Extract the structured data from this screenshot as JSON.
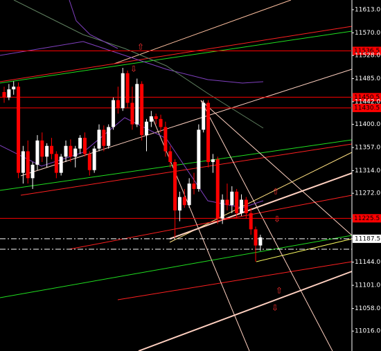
{
  "chart_data": {
    "type": "candlestick",
    "up_color": "#ffffff",
    "down_color": "#ff0000",
    "level_color": "#ff0000",
    "ylim": [
      10979,
      11631
    ],
    "yticks": [
      {
        "value": 11613,
        "label": "11613.0"
      },
      {
        "value": 11570,
        "label": "11570.0"
      },
      {
        "value": 11528,
        "label": "11528.0"
      },
      {
        "value": 11485,
        "label": "11485.0"
      },
      {
        "value": 11442,
        "label": "11442.0"
      },
      {
        "value": 11400,
        "label": "11400.0"
      },
      {
        "value": 11357,
        "label": "11357.0"
      },
      {
        "value": 11314,
        "label": "11314.0"
      },
      {
        "value": 11272,
        "label": "11272.0"
      },
      11187.5,
      {
        "value": 11144,
        "label": "11144.0"
      },
      {
        "value": 11101,
        "label": "11101.0"
      },
      {
        "value": 11058,
        "label": "11058.0"
      },
      {
        "value": 11016,
        "label": "11016.0"
      }
    ],
    "levels": [
      {
        "value": 11536.5,
        "label": "11536.5"
      },
      {
        "value": 11450.5,
        "label": "11450.5"
      },
      {
        "value": 11430.5,
        "label": "11430.5"
      },
      {
        "value": 11225.5,
        "label": "11225.5"
      }
    ],
    "dashed_levels": [
      11187.5,
      11168
    ],
    "ohlc": [
      [
        11460,
        11470,
        11440,
        11450
      ],
      [
        11450,
        11475,
        11445,
        11465
      ],
      [
        11465,
        11480,
        11455,
        11470
      ],
      [
        11470,
        11478,
        11300,
        11310
      ],
      [
        11310,
        11360,
        11290,
        11350
      ],
      [
        11350,
        11370,
        11290,
        11300
      ],
      [
        11300,
        11330,
        11280,
        11325
      ],
      [
        11325,
        11380,
        11315,
        11370
      ],
      [
        11370,
        11385,
        11330,
        11340
      ],
      [
        11340,
        11365,
        11320,
        11360
      ],
      [
        11360,
        11375,
        11335,
        11345
      ],
      [
        11345,
        11350,
        11300,
        11310
      ],
      [
        11310,
        11345,
        11305,
        11340
      ],
      [
        11340,
        11370,
        11330,
        11360
      ],
      [
        11360,
        11372,
        11330,
        11340
      ],
      [
        11340,
        11360,
        11320,
        11355
      ],
      [
        11355,
        11380,
        11345,
        11375
      ],
      [
        11375,
        11385,
        11340,
        11345
      ],
      [
        11345,
        11350,
        11305,
        11315
      ],
      [
        11315,
        11360,
        11310,
        11355
      ],
      [
        11355,
        11400,
        11350,
        11390
      ],
      [
        11390,
        11398,
        11350,
        11360
      ],
      [
        11360,
        11400,
        11355,
        11395
      ],
      [
        11395,
        11450,
        11390,
        11445
      ],
      [
        11445,
        11470,
        11420,
        11430
      ],
      [
        11430,
        11505,
        11425,
        11495
      ],
      [
        11495,
        11500,
        11430,
        11440
      ],
      [
        11440,
        11470,
        11390,
        11400
      ],
      [
        11400,
        11485,
        11395,
        11475
      ],
      [
        11475,
        11480,
        11370,
        11380
      ],
      [
        11380,
        11410,
        11350,
        11405
      ],
      [
        11405,
        11425,
        11395,
        11415
      ],
      [
        11415,
        11420,
        11400,
        11410
      ],
      [
        11410,
        11418,
        11385,
        11395
      ],
      [
        11395,
        11405,
        11340,
        11350
      ],
      [
        11350,
        11360,
        11320,
        11330
      ],
      [
        11330,
        11335,
        11190,
        11240
      ],
      [
        11240,
        11275,
        11220,
        11265
      ],
      [
        11265,
        11280,
        11245,
        11250
      ],
      [
        11250,
        11300,
        11245,
        11290
      ],
      [
        11290,
        11310,
        11270,
        11280
      ],
      [
        11280,
        11400,
        11275,
        11390
      ],
      [
        11390,
        11445,
        11385,
        11440
      ],
      [
        11440,
        11445,
        11320,
        11330
      ],
      [
        11330,
        11345,
        11310,
        11335
      ],
      [
        11335,
        11340,
        11215,
        11225
      ],
      [
        11225,
        11270,
        11215,
        11260
      ],
      [
        11260,
        11290,
        11240,
        11250
      ],
      [
        11250,
        11285,
        11235,
        11275
      ],
      [
        11275,
        11280,
        11225,
        11235
      ],
      [
        11235,
        11270,
        11230,
        11260
      ],
      [
        11260,
        11265,
        11225,
        11235
      ],
      [
        11235,
        11245,
        11195,
        11205
      ],
      [
        11205,
        11210,
        11145,
        11175
      ],
      [
        11175,
        11195,
        11165,
        11190
      ]
    ]
  }
}
